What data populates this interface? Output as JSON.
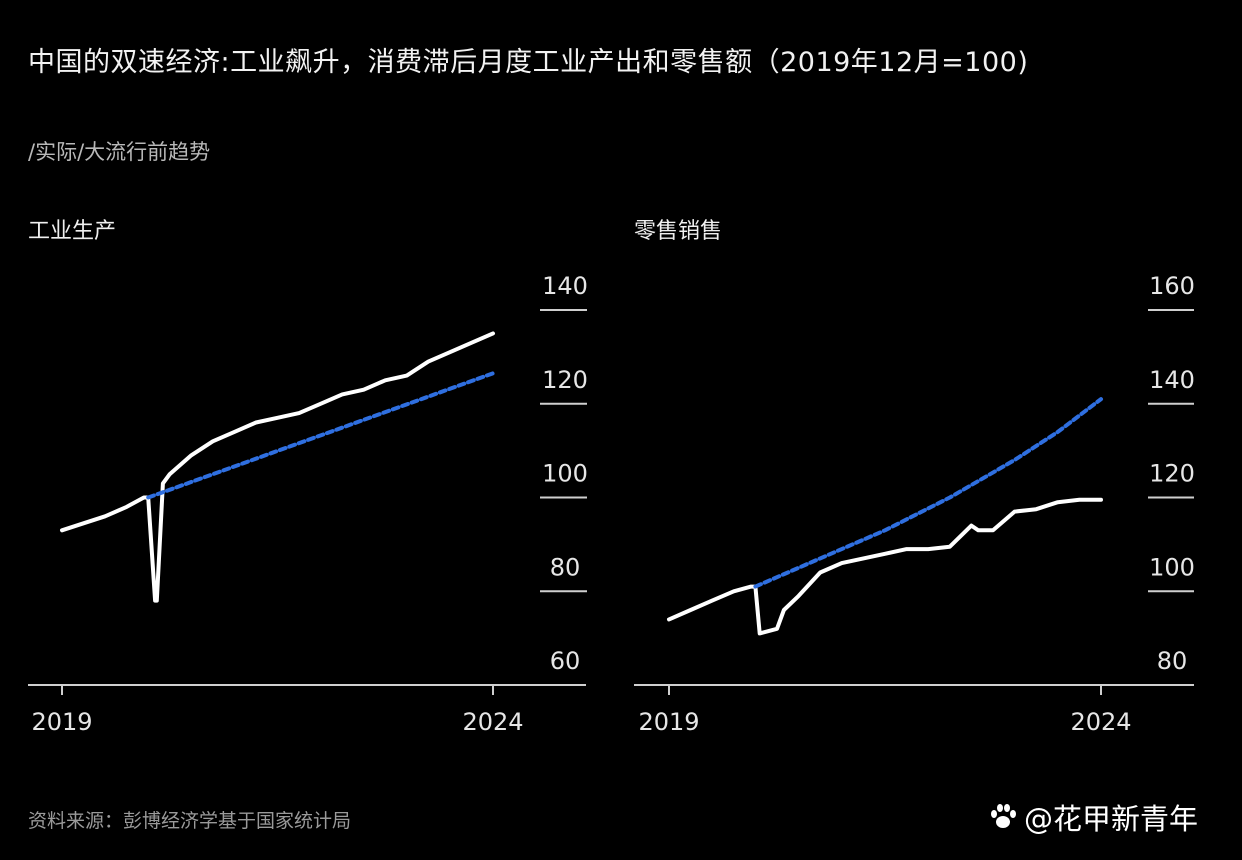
{
  "header": {
    "title": "中国的双速经济:工业飙升，消费滞后月度工业产出和零售额（2019年12月=100)",
    "subtitle": "/实际/大流行前趋势"
  },
  "footer": {
    "source": "资料来源：彭博经济学基于国家统计局",
    "watermark": "@花甲新青年"
  },
  "colors": {
    "actual": "#ffffff",
    "trend": "#2f6fe0",
    "axis": "#cfcfcf",
    "background": "#000000"
  },
  "chart_data": [
    {
      "type": "line",
      "title": "工业生产",
      "xlabel": "",
      "ylabel": "",
      "xlim": [
        2019.0,
        2024.0
      ],
      "ylim": [
        60,
        140
      ],
      "x_ticks": [
        "2019",
        "2024"
      ],
      "y_ticks": [
        140,
        120,
        100,
        80,
        60
      ],
      "grid": false,
      "series": [
        {
          "style": "solid",
          "x": [
            2019.0,
            2019.25,
            2019.5,
            2019.75,
            2019.95,
            2020.0,
            2020.08,
            2020.1,
            2020.17,
            2020.25,
            2020.5,
            2020.75,
            2021.0,
            2021.25,
            2021.5,
            2021.75,
            2022.0,
            2022.25,
            2022.5,
            2022.75,
            2023.0,
            2023.25,
            2023.5,
            2023.75,
            2024.0
          ],
          "values": [
            93,
            94.5,
            96,
            98,
            100,
            100,
            78,
            78,
            103,
            105,
            109,
            112,
            114,
            116,
            117,
            118,
            120,
            122,
            123,
            125,
            126,
            129,
            131,
            133,
            135
          ]
        },
        {
          "style": "dashed",
          "x": [
            2020.0,
            2024.0
          ],
          "values": [
            100,
            126.5
          ]
        }
      ]
    },
    {
      "type": "line",
      "title": "零售销售",
      "xlabel": "",
      "ylabel": "",
      "xlim": [
        2019.0,
        2024.0
      ],
      "ylim": [
        80,
        160
      ],
      "x_ticks": [
        "2019",
        "2024"
      ],
      "y_ticks": [
        160,
        140,
        120,
        100,
        80
      ],
      "grid": false,
      "series": [
        {
          "style": "solid",
          "x": [
            2019.0,
            2019.25,
            2019.5,
            2019.75,
            2019.95,
            2020.0,
            2020.05,
            2020.25,
            2020.33,
            2020.5,
            2020.75,
            2021.0,
            2021.25,
            2021.5,
            2021.75,
            2022.0,
            2022.25,
            2022.5,
            2022.58,
            2022.75,
            2023.0,
            2023.25,
            2023.5,
            2023.75,
            2024.0
          ],
          "values": [
            94,
            96,
            98,
            100,
            101,
            101,
            91,
            92,
            96,
            99,
            104,
            106,
            107,
            108,
            109,
            109,
            109.5,
            114,
            113,
            113,
            117,
            117.5,
            119,
            119.5,
            119.5
          ]
        },
        {
          "style": "dashed",
          "x": [
            2020.0,
            2020.75,
            2021.5,
            2022.25,
            2023.0,
            2023.5,
            2024.0
          ],
          "values": [
            101,
            107,
            113,
            120,
            128,
            134,
            141
          ]
        }
      ]
    }
  ]
}
